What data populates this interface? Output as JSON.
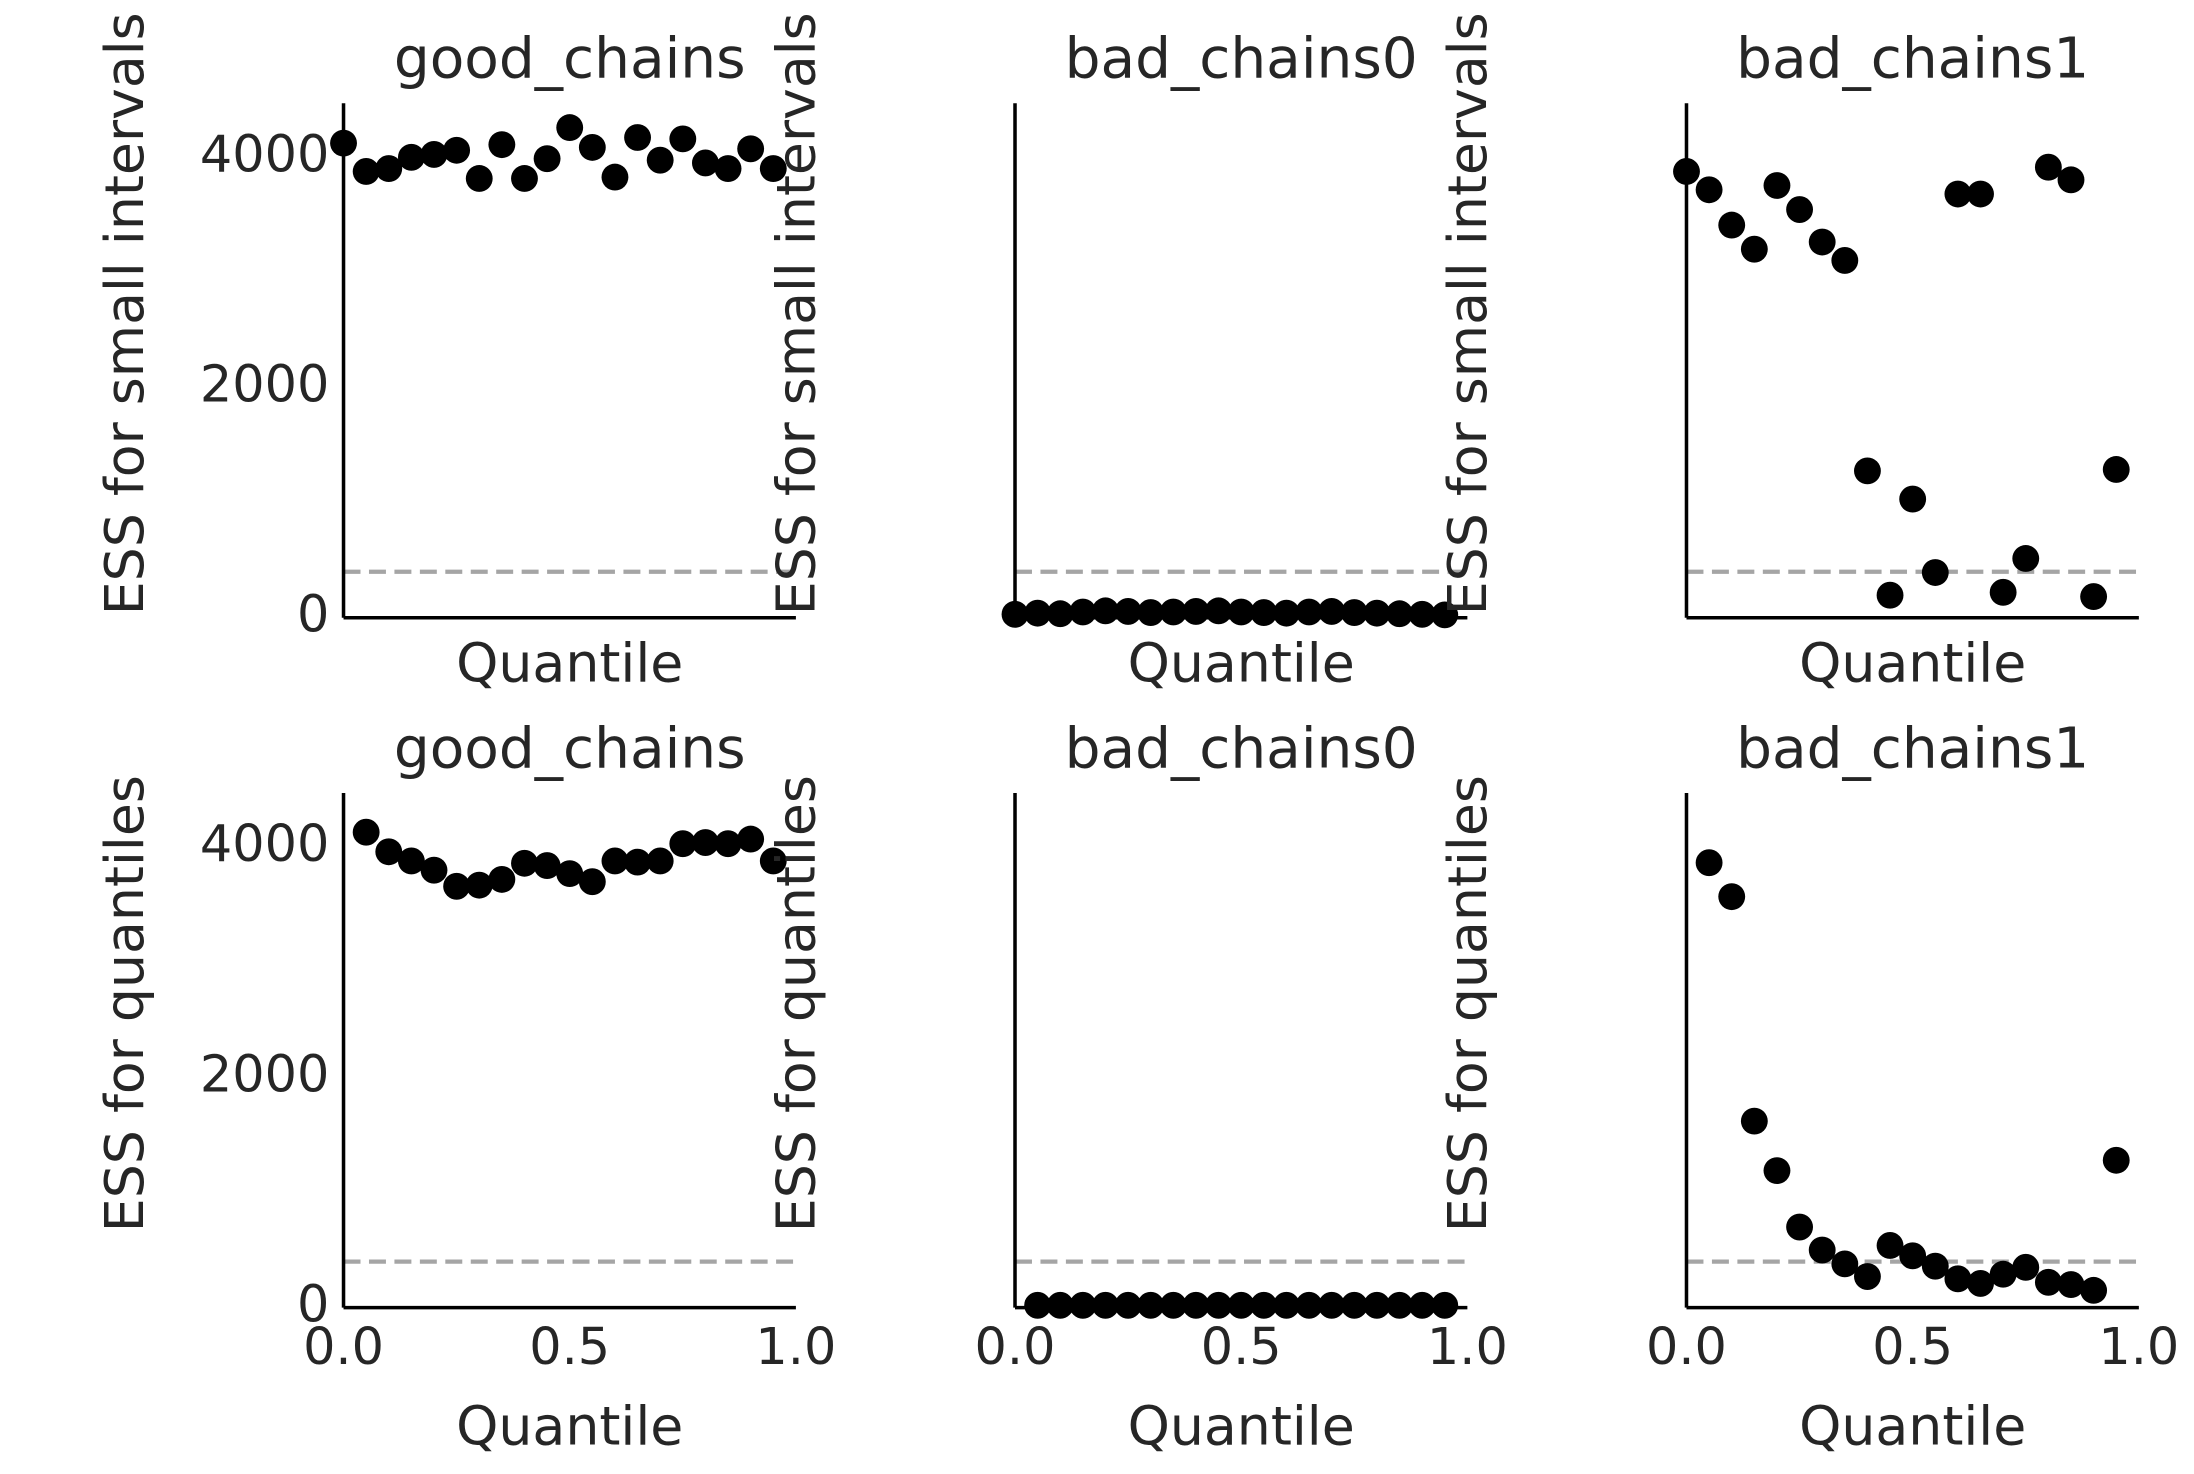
{
  "chart_data": [
    {
      "type": "scatter",
      "title": "good_chains",
      "xlabel": "Quantile",
      "ylabel": "ESS for small intervals",
      "color": "#000000",
      "reference_line": 400,
      "reference_color": "#a5a5a5",
      "x": [
        0,
        0.05,
        0.1,
        0.15,
        0.2,
        0.25,
        0.3,
        0.35,
        0.4,
        0.45,
        0.5,
        0.55,
        0.6,
        0.65,
        0.7,
        0.75,
        0.8,
        0.85,
        0.9,
        0.95
      ],
      "values": [
        4123,
        3877,
        3902,
        4000,
        4025,
        4061,
        3816,
        4110,
        3816,
        3988,
        4258,
        4086,
        3828,
        4172,
        3975,
        4160,
        3951,
        3902,
        4074,
        3902
      ],
      "xlim": [
        0,
        1
      ],
      "ylim": [
        0,
        4470
      ],
      "yticks": [
        0,
        2000,
        4000
      ]
    },
    {
      "type": "scatter",
      "title": "bad_chains0",
      "xlabel": "Quantile",
      "ylabel": "ESS for small intervals",
      "color": "#000000",
      "reference_line": 400,
      "reference_color": "#a5a5a5",
      "x": [
        0,
        0.05,
        0.1,
        0.15,
        0.2,
        0.25,
        0.3,
        0.35,
        0.4,
        0.45,
        0.5,
        0.55,
        0.6,
        0.65,
        0.7,
        0.75,
        0.8,
        0.85,
        0.9,
        0.95
      ],
      "values": [
        30,
        40,
        35,
        50,
        60,
        55,
        45,
        50,
        55,
        60,
        50,
        45,
        40,
        50,
        55,
        45,
        40,
        35,
        30,
        25
      ],
      "xlim": [
        0,
        1
      ],
      "ylim": [
        0,
        4470
      ]
    },
    {
      "type": "scatter",
      "title": "bad_chains1",
      "xlabel": "Quantile",
      "ylabel": "ESS for small intervals",
      "color": "#000000",
      "reference_line": 400,
      "reference_color": "#a5a5a5",
      "x": [
        0,
        0.05,
        0.1,
        0.15,
        0.2,
        0.25,
        0.3,
        0.35,
        0.4,
        0.45,
        0.5,
        0.55,
        0.6,
        0.65,
        0.7,
        0.75,
        0.8,
        0.85,
        0.9,
        0.95
      ],
      "values": [
        3877,
        3718,
        3411,
        3202,
        3755,
        3546,
        3264,
        3104,
        1276,
        196,
        1031,
        393,
        3681,
        3681,
        221,
        515,
        3914,
        3804,
        184,
        1288
      ],
      "xlim": [
        0,
        1
      ],
      "ylim": [
        0,
        4470
      ]
    },
    {
      "type": "scatter",
      "title": "good_chains",
      "xlabel": "Quantile",
      "ylabel": "ESS for quantiles",
      "color": "#000000",
      "reference_line": 400,
      "reference_color": "#a5a5a5",
      "x": [
        0.05,
        0.1,
        0.15,
        0.2,
        0.25,
        0.3,
        0.35,
        0.4,
        0.45,
        0.5,
        0.55,
        0.6,
        0.65,
        0.7,
        0.75,
        0.8,
        0.85,
        0.9,
        0.95
      ],
      "values": [
        4130,
        3960,
        3880,
        3800,
        3660,
        3670,
        3720,
        3860,
        3840,
        3770,
        3700,
        3880,
        3870,
        3880,
        4030,
        4040,
        4030,
        4070,
        3880
      ],
      "xlim": [
        0,
        1
      ],
      "ylim": [
        0,
        4470
      ],
      "yticks": [
        0,
        2000,
        4000
      ],
      "xticks": [
        {
          "value": 0,
          "label": "0.0"
        },
        0.5,
        {
          "value": 1,
          "label": "1.0"
        }
      ]
    },
    {
      "type": "scatter",
      "title": "bad_chains0",
      "xlabel": "Quantile",
      "ylabel": "ESS for quantiles",
      "color": "#000000",
      "reference_line": 400,
      "reference_color": "#a5a5a5",
      "x": [
        0.05,
        0.1,
        0.15,
        0.2,
        0.25,
        0.3,
        0.35,
        0.4,
        0.45,
        0.5,
        0.55,
        0.6,
        0.65,
        0.7,
        0.75,
        0.8,
        0.85,
        0.9,
        0.95
      ],
      "values": [
        20,
        20,
        20,
        20,
        20,
        20,
        20,
        20,
        20,
        20,
        20,
        20,
        20,
        20,
        20,
        20,
        20,
        20,
        20
      ],
      "xlim": [
        0,
        1
      ],
      "ylim": [
        0,
        4470
      ],
      "xticks": [
        {
          "value": 0,
          "label": "0.0"
        },
        0.5,
        {
          "value": 1,
          "label": "1.0"
        }
      ]
    },
    {
      "type": "scatter",
      "title": "bad_chains1",
      "xlabel": "Quantile",
      "ylabel": "ESS for quantiles",
      "color": "#000000",
      "reference_line": 400,
      "reference_color": "#a5a5a5",
      "x": [
        0.05,
        0.1,
        0.15,
        0.2,
        0.25,
        0.3,
        0.35,
        0.4,
        0.45,
        0.5,
        0.55,
        0.6,
        0.65,
        0.7,
        0.75,
        0.8,
        0.85,
        0.9,
        0.95
      ],
      "values": [
        3865,
        3570,
        1620,
        1190,
        700,
        500,
        380,
        270,
        540,
        450,
        360,
        250,
        210,
        290,
        350,
        220,
        200,
        150,
        1280
      ],
      "xlim": [
        0,
        1
      ],
      "ylim": [
        0,
        4470
      ],
      "xticks": [
        {
          "value": 0,
          "label": "0.0"
        },
        0.5,
        {
          "value": 1,
          "label": "1.0"
        }
      ]
    }
  ]
}
